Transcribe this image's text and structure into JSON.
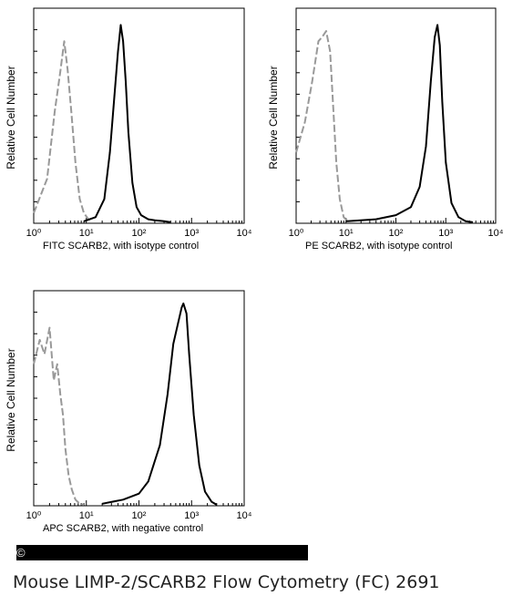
{
  "chart_data": [
    {
      "type": "line",
      "xscale": "log",
      "xlim": [
        1,
        10000
      ],
      "xticks": [
        "10⁰",
        "10¹",
        "10²",
        "10³",
        "10⁴"
      ],
      "ylabel": "Relative Cell Number",
      "xlabel": "FITC  SCARB2,  with isotype control",
      "series": [
        {
          "style": "dashed",
          "color": "#999999",
          "x": [
            1,
            1.8,
            2.5,
            3.2,
            3.8,
            4.4,
            5.2,
            6.2,
            7.5,
            9,
            11,
            13
          ],
          "y": [
            0.05,
            0.22,
            0.55,
            0.75,
            0.9,
            0.76,
            0.55,
            0.3,
            0.12,
            0.05,
            0.02,
            0.01
          ]
        },
        {
          "style": "solid",
          "color": "#000000",
          "x": [
            9,
            15,
            22,
            28,
            34,
            40,
            45,
            50,
            56,
            63,
            75,
            90,
            110,
            150,
            200,
            300,
            400
          ],
          "y": [
            0.01,
            0.03,
            0.12,
            0.35,
            0.62,
            0.85,
            0.98,
            0.9,
            0.7,
            0.45,
            0.2,
            0.08,
            0.04,
            0.02,
            0.015,
            0.01,
            0.005
          ]
        }
      ]
    },
    {
      "type": "line",
      "xscale": "log",
      "xlim": [
        1,
        10000
      ],
      "xticks": [
        "10⁰",
        "10¹",
        "10²",
        "10³",
        "10⁴"
      ],
      "ylabel": "Relative Cell Number",
      "xlabel": "PE  SCARB2,  with isotype control",
      "series": [
        {
          "style": "dashed",
          "color": "#999999",
          "x": [
            1,
            1.5,
            2.1,
            2.8,
            3.3,
            4,
            4.8,
            5.6,
            6.4,
            7.5,
            9,
            11
          ],
          "y": [
            0.35,
            0.5,
            0.7,
            0.9,
            0.92,
            0.95,
            0.85,
            0.55,
            0.3,
            0.12,
            0.03,
            0.01
          ]
        },
        {
          "style": "solid",
          "color": "#000000",
          "x": [
            10,
            40,
            100,
            200,
            300,
            400,
            500,
            600,
            680,
            760,
            850,
            1000,
            1300,
            1800,
            2500,
            3500
          ],
          "y": [
            0.01,
            0.02,
            0.04,
            0.08,
            0.18,
            0.38,
            0.7,
            0.92,
            0.98,
            0.88,
            0.6,
            0.3,
            0.1,
            0.03,
            0.01,
            0.005
          ]
        }
      ]
    },
    {
      "type": "line",
      "xscale": "log",
      "xlim": [
        1,
        10000
      ],
      "xticks": [
        "10⁰",
        "10¹",
        "10²",
        "10³",
        "10⁴"
      ],
      "ylabel": "Relative Cell Number",
      "xlabel": "APC SCARB2, with negative control",
      "series": [
        {
          "style": "dashed",
          "color": "#999999",
          "x": [
            1,
            1.3,
            1.6,
            2,
            2.4,
            2.8,
            3.2,
            3.6,
            4,
            4.6,
            5.3,
            6.2,
            7.5,
            9
          ],
          "y": [
            0.7,
            0.82,
            0.75,
            0.88,
            0.62,
            0.7,
            0.55,
            0.45,
            0.28,
            0.15,
            0.08,
            0.03,
            0.01,
            0.005
          ]
        },
        {
          "style": "solid",
          "color": "#000000",
          "x": [
            20,
            50,
            100,
            150,
            250,
            350,
            450,
            550,
            650,
            700,
            800,
            900,
            1100,
            1400,
            1800,
            2400,
            3000
          ],
          "y": [
            0.01,
            0.03,
            0.06,
            0.12,
            0.3,
            0.55,
            0.8,
            0.9,
            0.98,
            1.0,
            0.95,
            0.75,
            0.45,
            0.2,
            0.07,
            0.02,
            0.005
          ]
        }
      ]
    }
  ],
  "copyright_symbol": "©",
  "caption": "Mouse LIMP-2/SCARB2 Flow Cytometry (FC) 2691"
}
